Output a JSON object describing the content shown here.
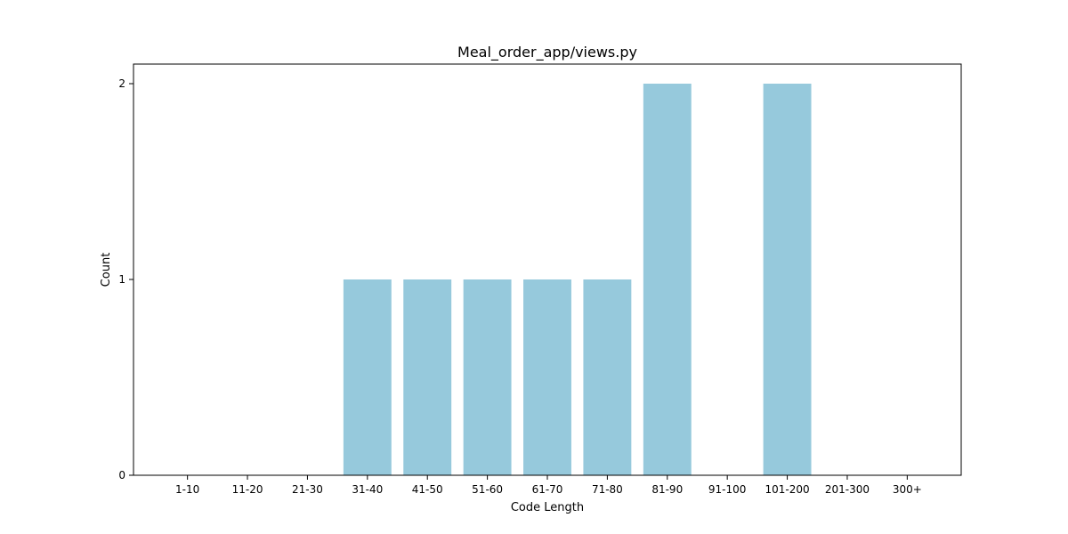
{
  "chart_data": {
    "type": "bar",
    "title": "Meal_order_app/views.py",
    "xlabel": "Code Length",
    "ylabel": "Count",
    "categories": [
      "1-10",
      "11-20",
      "21-30",
      "31-40",
      "41-50",
      "51-60",
      "61-70",
      "71-80",
      "81-90",
      "91-100",
      "101-200",
      "201-300",
      "300+"
    ],
    "values": [
      0,
      0,
      0,
      1,
      1,
      1,
      1,
      1,
      2,
      0,
      2,
      0,
      0
    ],
    "yticks": [
      0,
      1,
      2
    ],
    "ylim": [
      0,
      2.1
    ],
    "bar_color": "#96c9dc",
    "grid": false,
    "legend": "none"
  }
}
